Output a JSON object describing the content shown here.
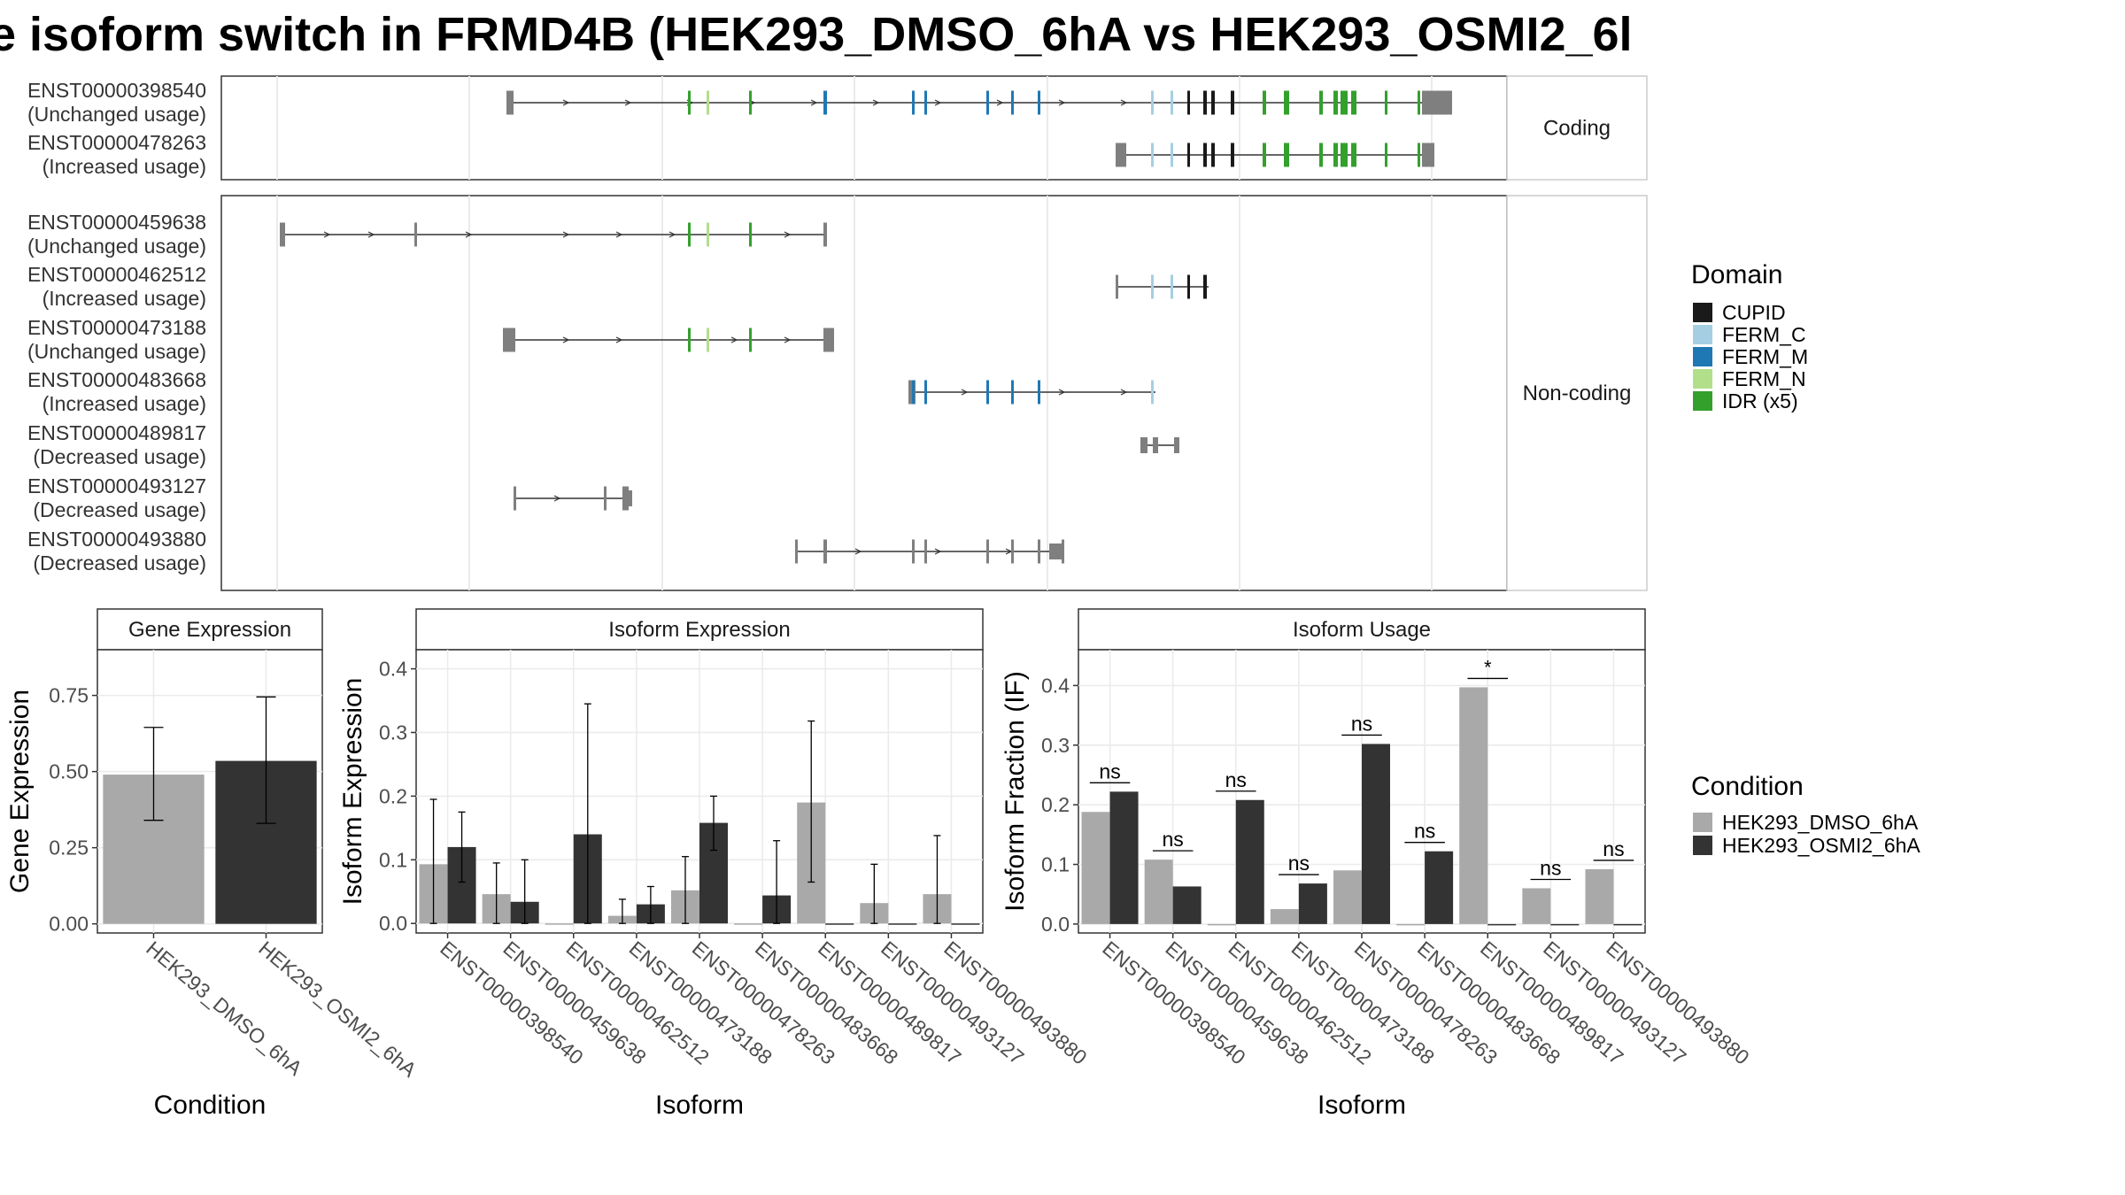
{
  "title": "e isoform switch in FRMD4B (HEK293_DMSO_6hA vs HEK293_OSMI2_6l",
  "transcripts": {
    "coding_panel_label": "Coding",
    "noncoding_panel_label": "Non-coding",
    "coding": [
      {
        "id": "ENST00000398540",
        "usage": "(Unchanged usage)"
      },
      {
        "id": "ENST00000478263",
        "usage": "(Increased usage)"
      }
    ],
    "noncoding": [
      {
        "id": "ENST00000459638",
        "usage": "(Unchanged usage)"
      },
      {
        "id": "ENST00000462512",
        "usage": "(Increased usage)"
      },
      {
        "id": "ENST00000473188",
        "usage": "(Unchanged usage)"
      },
      {
        "id": "ENST00000483668",
        "usage": "(Increased usage)"
      },
      {
        "id": "ENST00000489817",
        "usage": "(Decreased usage)"
      },
      {
        "id": "ENST00000493127",
        "usage": "(Decreased usage)"
      },
      {
        "id": "ENST00000493880",
        "usage": "(Decreased usage)"
      }
    ]
  },
  "domain_legend": {
    "title": "Domain",
    "items": [
      {
        "label": "CUPID",
        "color": "#1a1a1a"
      },
      {
        "label": "FERM_C",
        "color": "#a6cee3"
      },
      {
        "label": "FERM_M",
        "color": "#1f78b4"
      },
      {
        "label": "FERM_N",
        "color": "#b2df8a"
      },
      {
        "label": "IDR (x5)",
        "color": "#33a02c"
      }
    ]
  },
  "condition_legend": {
    "title": "Condition",
    "items": [
      {
        "label": "HEK293_DMSO_6hA",
        "color": "#a9a9a9"
      },
      {
        "label": "HEK293_OSMI2_6hA",
        "color": "#333333"
      }
    ]
  },
  "chart_data": [
    {
      "type": "bar",
      "title": "Gene Expression",
      "xlabel": "Condition",
      "ylabel": "Gene Expression",
      "categories": [
        "HEK293_DMSO_6hA",
        "HEK293_OSMI2_6hA"
      ],
      "values": [
        0.49,
        0.535
      ],
      "errors": [
        [
          0.34,
          0.645
        ],
        [
          0.33,
          0.745
        ]
      ],
      "ylim": [
        -0.03,
        0.9
      ],
      "yticks": [
        "0.00",
        "0.25",
        "0.50",
        "0.75"
      ]
    },
    {
      "type": "bar",
      "title": "Isoform Expression",
      "xlabel": "Isoform",
      "ylabel": "Isoform Expression",
      "categories": [
        "ENST00000398540",
        "ENST00000459638",
        "ENST00000462512",
        "ENST00000473188",
        "ENST00000478263",
        "ENST00000483668",
        "ENST00000489817",
        "ENST00000493127",
        "ENST00000493880"
      ],
      "series": [
        {
          "name": "HEK293_DMSO_6hA",
          "values": [
            0.093,
            0.046,
            0.0,
            0.012,
            0.052,
            0.0,
            0.19,
            0.032,
            0.046
          ],
          "errors": [
            [
              0.0,
              0.195
            ],
            [
              0.0,
              0.095
            ],
            null,
            [
              0.0,
              0.038
            ],
            [
              0.0,
              0.105
            ],
            null,
            [
              0.065,
              0.318
            ],
            [
              0.0,
              0.093
            ],
            [
              0.0,
              0.138
            ]
          ]
        },
        {
          "name": "HEK293_OSMI2_6hA",
          "values": [
            0.12,
            0.034,
            0.14,
            0.03,
            0.158,
            0.044,
            0.0,
            0.0,
            0.0
          ],
          "errors": [
            [
              0.065,
              0.175
            ],
            [
              0.0,
              0.1
            ],
            [
              0.0,
              0.345
            ],
            [
              0.0,
              0.058
            ],
            [
              0.115,
              0.2
            ],
            [
              0.0,
              0.13
            ],
            null,
            null,
            null
          ]
        }
      ],
      "ylim": [
        -0.015,
        0.43
      ],
      "yticks": [
        "0.0",
        "0.1",
        "0.2",
        "0.3",
        "0.4"
      ]
    },
    {
      "type": "bar",
      "title": "Isoform Usage",
      "xlabel": "Isoform",
      "ylabel": "Isoform Fraction (IF)",
      "categories": [
        "ENST00000398540",
        "ENST00000459638",
        "ENST00000462512",
        "ENST00000473188",
        "ENST00000478263",
        "ENST00000483668",
        "ENST00000489817",
        "ENST00000493127",
        "ENST00000493880"
      ],
      "series": [
        {
          "name": "HEK293_DMSO_6hA",
          "values": [
            0.188,
            0.108,
            0.0,
            0.025,
            0.09,
            0.0,
            0.397,
            0.06,
            0.092
          ]
        },
        {
          "name": "HEK293_OSMI2_6hA",
          "values": [
            0.222,
            0.063,
            0.208,
            0.068,
            0.302,
            0.122,
            0.0,
            0.0,
            0.0
          ]
        }
      ],
      "significance": [
        "ns",
        "ns",
        "ns",
        "ns",
        "ns",
        "ns",
        "*",
        "ns",
        "ns"
      ],
      "ylim": [
        -0.015,
        0.46
      ],
      "yticks": [
        "0.0",
        "0.1",
        "0.2",
        "0.3",
        "0.4"
      ]
    }
  ]
}
